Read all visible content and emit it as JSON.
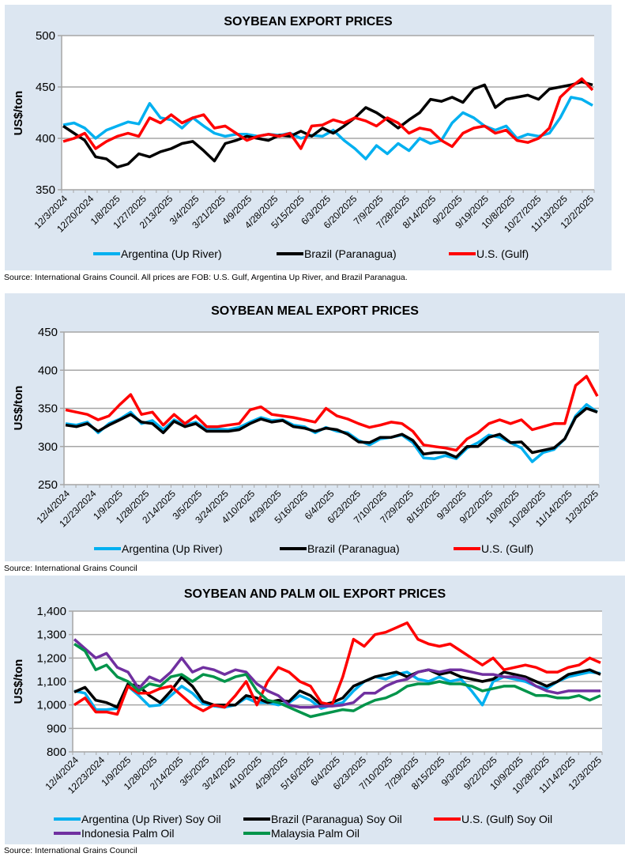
{
  "chart_data": [
    {
      "type": "line",
      "title": "SOYBEAN EXPORT PRICES",
      "ylabel": "US$/ton",
      "xlabel": "",
      "ylim": [
        350,
        500
      ],
      "yticks": [
        350,
        400,
        450,
        500
      ],
      "ytick_labels": [
        "350",
        "400",
        "450",
        "500"
      ],
      "grid": true,
      "legend": "bottom",
      "x_tick_labels": [
        "12/3/2024",
        "12/20/2024",
        "1/8/2025",
        "1/27/2025",
        "2/13/2025",
        "3/4/2025",
        "3/21/2025",
        "4/9/2025",
        "4/28/2025",
        "5/15/2025",
        "6/3/2025",
        "6/20/2025",
        "7/9/2025",
        "7/28/2025",
        "8/14/2025",
        "9/2/2025",
        "9/19/2025",
        "10/8/2025",
        "10/27/2025",
        "11/13/2025",
        "12/2/2025"
      ],
      "series": [
        {
          "name": "Argentina (Up River)",
          "color": "#00b0f0",
          "values": [
            413,
            415,
            410,
            400,
            408,
            412,
            416,
            414,
            434,
            420,
            418,
            410,
            420,
            412,
            405,
            402,
            404,
            404,
            402,
            404,
            403,
            405,
            400,
            403,
            402,
            408,
            398,
            390,
            380,
            393,
            385,
            395,
            388,
            400,
            395,
            398,
            415,
            425,
            420,
            412,
            408,
            412,
            400,
            404,
            402,
            405,
            420,
            440,
            438,
            432
          ]
        },
        {
          "name": "Brazil (Paranagua)",
          "color": "#000000",
          "values": [
            412,
            405,
            398,
            382,
            380,
            372,
            375,
            385,
            382,
            387,
            390,
            395,
            397,
            388,
            378,
            395,
            398,
            402,
            400,
            398,
            403,
            402,
            407,
            402,
            410,
            405,
            412,
            420,
            430,
            425,
            418,
            410,
            418,
            425,
            438,
            436,
            440,
            435,
            448,
            452,
            430,
            438,
            440,
            442,
            438,
            448,
            450,
            452,
            455,
            452
          ]
        },
        {
          "name": "U.S. (Gulf)",
          "color": "#ff0000",
          "values": [
            397,
            400,
            405,
            390,
            397,
            402,
            405,
            402,
            420,
            415,
            423,
            415,
            420,
            423,
            410,
            412,
            405,
            398,
            402,
            404,
            402,
            405,
            390,
            412,
            413,
            418,
            415,
            420,
            417,
            412,
            420,
            415,
            405,
            410,
            408,
            398,
            392,
            405,
            410,
            412,
            405,
            408,
            398,
            396,
            400,
            410,
            440,
            450,
            458,
            447
          ]
        }
      ],
      "source": "Source: International Grains Council. All prices are FOB: U.S. Gulf, Argentina Up River, and Brazil Paranagua."
    },
    {
      "type": "line",
      "title": "SOYBEAN MEAL EXPORT PRICES",
      "ylabel": "US$/ton",
      "xlabel": "",
      "ylim": [
        250,
        450
      ],
      "yticks": [
        250,
        300,
        350,
        400,
        450
      ],
      "ytick_labels": [
        "250",
        "300",
        "350",
        "400",
        "450"
      ],
      "grid": true,
      "legend": "bottom",
      "x_tick_labels": [
        "12/4/2024",
        "12/23/2024",
        "1/9/2025",
        "1/28/2025",
        "2/14/2025",
        "3/5/2025",
        "3/24/2025",
        "4/10/2025",
        "4/29/2025",
        "5/16/2025",
        "6/4/2025",
        "6/23/2025",
        "7/10/2025",
        "7/29/2025",
        "8/15/2025",
        "9/3/2025",
        "9/22/2025",
        "10/9/2025",
        "10/28/2025",
        "11/14/2025",
        "12/3/2025"
      ],
      "series": [
        {
          "name": "Argentina (Up River)",
          "color": "#00b0f0",
          "values": [
            330,
            328,
            332,
            318,
            330,
            336,
            345,
            330,
            334,
            322,
            335,
            328,
            332,
            322,
            323,
            322,
            325,
            332,
            338,
            334,
            335,
            328,
            326,
            318,
            325,
            320,
            318,
            308,
            302,
            310,
            312,
            315,
            305,
            285,
            284,
            288,
            284,
            298,
            305,
            315,
            312,
            305,
            298,
            280,
            292,
            296,
            310,
            340,
            355,
            345
          ]
        },
        {
          "name": "Brazil (Paranagua)",
          "color": "#000000",
          "values": [
            328,
            326,
            330,
            320,
            328,
            335,
            342,
            332,
            330,
            318,
            333,
            326,
            330,
            320,
            320,
            320,
            322,
            330,
            336,
            332,
            334,
            326,
            324,
            320,
            324,
            322,
            316,
            306,
            305,
            312,
            312,
            316,
            308,
            290,
            292,
            292,
            286,
            300,
            300,
            312,
            316,
            305,
            306,
            292,
            295,
            298,
            310,
            338,
            350,
            345
          ]
        },
        {
          "name": "U.S. (Gulf)",
          "color": "#ff0000",
          "values": [
            348,
            345,
            342,
            335,
            340,
            355,
            368,
            342,
            345,
            328,
            342,
            330,
            340,
            326,
            326,
            328,
            330,
            348,
            352,
            342,
            340,
            338,
            335,
            332,
            350,
            340,
            336,
            330,
            325,
            328,
            332,
            330,
            320,
            302,
            300,
            298,
            295,
            310,
            318,
            330,
            335,
            330,
            335,
            322,
            326,
            330,
            330,
            380,
            392,
            366
          ]
        }
      ],
      "source": "Source: International Grains Council"
    },
    {
      "type": "line",
      "title": "SOYBEAN AND PALM OIL EXPORT PRICES",
      "ylabel": "US$/ton",
      "xlabel": "",
      "ylim": [
        800,
        1400
      ],
      "yticks": [
        800,
        900,
        1000,
        1100,
        1200,
        1300,
        1400
      ],
      "ytick_labels": [
        "800",
        "900",
        "1,000",
        "1,100",
        "1,200",
        "1,300",
        "1,400"
      ],
      "grid": true,
      "legend": "bottom",
      "x_tick_labels": [
        "12/4/2024",
        "12/23/2024",
        "1/9/2025",
        "1/28/2025",
        "2/14/2025",
        "3/5/2025",
        "3/24/2025",
        "4/10/2025",
        "4/29/2025",
        "5/16/2025",
        "6/4/2025",
        "6/23/2025",
        "7/10/2025",
        "7/29/2025",
        "8/15/2025",
        "9/3/2025",
        "9/22/2025",
        "10/9/2025",
        "10/28/2025",
        "11/14/2025",
        "12/3/2025"
      ],
      "series": [
        {
          "name": "Argentina (Up River) Soy Oil",
          "color": "#00b0f0",
          "values": [
            1060,
            1050,
            980,
            980,
            985,
            1080,
            1040,
            995,
            1000,
            1040,
            1080,
            1050,
            1005,
            995,
            990,
            1000,
            1030,
            1010,
            1010,
            1000,
            1010,
            1040,
            1020,
            985,
            1000,
            1010,
            1060,
            1100,
            1120,
            1110,
            1130,
            1140,
            1110,
            1100,
            1120,
            1100,
            1110,
            1060,
            1000,
            1100,
            1120,
            1110,
            1100,
            1080,
            1070,
            1100,
            1120,
            1130,
            1140,
            1135
          ]
        },
        {
          "name": "Brazil (Paranagua) Soy Oil",
          "color": "#000000",
          "values": [
            1055,
            1075,
            1020,
            1010,
            990,
            1090,
            1080,
            1040,
            1010,
            1060,
            1120,
            1080,
            1015,
            1000,
            1000,
            1000,
            1040,
            1030,
            1010,
            1020,
            1015,
            1060,
            1040,
            1000,
            1010,
            1030,
            1080,
            1100,
            1120,
            1130,
            1140,
            1120,
            1140,
            1150,
            1130,
            1140,
            1120,
            1110,
            1100,
            1110,
            1140,
            1130,
            1120,
            1100,
            1080,
            1100,
            1130,
            1140,
            1150,
            1130
          ]
        },
        {
          "name": "U.S. (Gulf) Soy Oil",
          "color": "#ff0000",
          "values": [
            1000,
            1030,
            970,
            970,
            960,
            1080,
            1050,
            1050,
            1070,
            1080,
            1040,
            1000,
            975,
            1000,
            990,
            1040,
            1100,
            1000,
            1100,
            1160,
            1140,
            1100,
            1080,
            1010,
            1000,
            1120,
            1280,
            1250,
            1300,
            1310,
            1330,
            1350,
            1280,
            1260,
            1250,
            1260,
            1230,
            1200,
            1170,
            1200,
            1150,
            1160,
            1170,
            1160,
            1140,
            1140,
            1160,
            1170,
            1200,
            1180
          ]
        },
        {
          "name": "Indonesia Palm Oil",
          "color": "#7030a0",
          "values": [
            1280,
            1240,
            1200,
            1220,
            1160,
            1140,
            1070,
            1120,
            1100,
            1140,
            1200,
            1140,
            1160,
            1150,
            1130,
            1150,
            1140,
            1090,
            1060,
            1040,
            1000,
            990,
            990,
            995,
            995,
            1000,
            1010,
            1050,
            1050,
            1080,
            1100,
            1110,
            1140,
            1150,
            1140,
            1150,
            1150,
            1140,
            1130,
            1130,
            1120,
            1120,
            1110,
            1080,
            1060,
            1050,
            1060,
            1060,
            1060,
            1060
          ]
        },
        {
          "name": "Malaysia Palm Oil",
          "color": "#00944a",
          "values": [
            1260,
            1230,
            1150,
            1170,
            1120,
            1100,
            1060,
            1090,
            1080,
            1120,
            1130,
            1100,
            1130,
            1120,
            1100,
            1120,
            1130,
            1060,
            1020,
            1010,
            990,
            970,
            950,
            960,
            970,
            980,
            975,
            1000,
            1020,
            1030,
            1050,
            1080,
            1090,
            1090,
            1100,
            1090,
            1090,
            1080,
            1060,
            1070,
            1080,
            1080,
            1060,
            1040,
            1040,
            1030,
            1030,
            1040,
            1020,
            1040
          ]
        }
      ],
      "source": "Source: International Grains Council"
    }
  ]
}
